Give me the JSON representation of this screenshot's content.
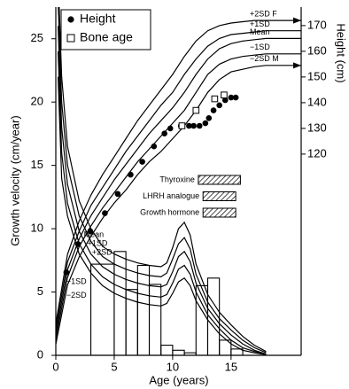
{
  "chart_data": {
    "type": "growth",
    "x_label": "Age (years)",
    "y_label": "Growth velocity (cm/year)",
    "y2_label": "Height (cm)",
    "xlim": [
      0,
      21
    ],
    "xticks": [
      0,
      5,
      10,
      15
    ],
    "ylim": [
      0,
      27.5
    ],
    "yticks": [
      0,
      5,
      10,
      15,
      20,
      25
    ],
    "y2lim": [
      41.7,
      177.2
    ],
    "y2ticks": [
      120,
      130,
      140,
      150,
      160,
      170
    ],
    "height_x": [
      0,
      1,
      2,
      3,
      4,
      5,
      6,
      7,
      8,
      9,
      10,
      11,
      12,
      13,
      14,
      15,
      16,
      17,
      18,
      21
    ],
    "height_curves": [
      {
        "name": "+2SD F",
        "values": [
          54,
          81,
          94,
          104,
          112,
          119,
          126,
          133,
          139,
          145,
          151,
          158,
          164,
          168,
          170,
          171,
          171.5,
          172,
          172,
          172
        ]
      },
      {
        "name": "+1SD",
        "values": [
          52,
          78,
          90,
          100,
          107,
          114,
          121,
          127,
          133,
          139,
          144,
          151,
          157,
          162,
          165,
          166.5,
          167,
          167.5,
          168,
          168
        ]
      },
      {
        "name": "Mean",
        "values": [
          50,
          75,
          87,
          96,
          103,
          110,
          116,
          122,
          128,
          133,
          138,
          144,
          151,
          157,
          161,
          163,
          164,
          164.5,
          165,
          165
        ]
      },
      {
        "name": "−1SD",
        "values": [
          48,
          72,
          84,
          92,
          99,
          105,
          111,
          117,
          122,
          127,
          132,
          137,
          144,
          151,
          155,
          157,
          158,
          158.5,
          159,
          159
        ]
      },
      {
        "name": "−2SD M",
        "values": [
          46,
          69,
          80,
          88,
          95,
          101,
          106,
          112,
          117,
          121,
          126,
          131,
          137,
          144,
          149,
          152,
          153,
          154,
          154.5,
          154.5
        ]
      }
    ],
    "velocity_x": [
      0.2,
      0.5,
      1,
      2,
      3,
      4,
      5,
      6,
      7,
      8,
      9,
      9.5,
      10,
      10.5,
      11,
      11.5,
      12,
      13,
      14,
      15,
      16,
      17,
      18
    ],
    "velocity_curves": [
      {
        "name": "+2SD",
        "values": [
          30,
          22,
          16.5,
          12.2,
          10,
          8.6,
          8,
          7.6,
          7.3,
          7.1,
          7.0,
          7.3,
          8.5,
          10,
          10.5,
          9.5,
          7.2,
          4.8,
          3.4,
          2.4,
          1.5,
          0.8,
          0.3
        ]
      },
      {
        "name": "+1SD",
        "values": [
          28,
          20,
          15,
          11,
          9,
          7.8,
          7.2,
          6.8,
          6.5,
          6.3,
          6.2,
          6.5,
          7.6,
          8.8,
          9.3,
          8.4,
          6.4,
          4.2,
          2.9,
          2,
          1.2,
          0.6,
          0.2
        ]
      },
      {
        "name": "Mean",
        "values": [
          26,
          18,
          13.5,
          9.8,
          8,
          7,
          6.4,
          6,
          5.7,
          5.5,
          5.4,
          5.6,
          6.6,
          7.8,
          8.2,
          7.4,
          5.7,
          3.7,
          2.5,
          1.6,
          0.9,
          0.4,
          0.1
        ]
      },
      {
        "name": "−1SD",
        "values": [
          24,
          16,
          12,
          8.8,
          7.2,
          6.2,
          5.6,
          5.2,
          4.9,
          4.7,
          4.6,
          4.8,
          5.7,
          6.8,
          7.1,
          6.4,
          5,
          3.2,
          2.1,
          1.2,
          0.6,
          0.3,
          0.1
        ]
      },
      {
        "name": "−2SD",
        "values": [
          22,
          14,
          11,
          8,
          6.5,
          5.5,
          4.9,
          4.5,
          4.2,
          4.0,
          3.9,
          4.1,
          4.9,
          5.8,
          6.1,
          5.5,
          4.3,
          2.8,
          1.7,
          0.9,
          0.4,
          0.2,
          0.05
        ]
      }
    ],
    "points": [
      {
        "name": "Height",
        "x": [
          0.9,
          1.9,
          2.95,
          4.2,
          5.3,
          6.4,
          7.4,
          8.4,
          9.3,
          9.8,
          10.7,
          11.4,
          11.8,
          12.3,
          12.8,
          13.1,
          13.5,
          14,
          14.5,
          15,
          15.4
        ],
        "values": [
          74,
          85,
          90,
          97,
          104.5,
          112,
          117,
          123,
          128,
          130,
          131,
          131,
          131,
          131,
          132,
          134,
          137,
          139,
          141,
          142,
          142
        ]
      },
      {
        "name": "Bone age",
        "x": [
          10.8,
          12,
          13.6,
          14.4
        ],
        "values": [
          131,
          137,
          141.5,
          143
        ]
      }
    ],
    "bins": [
      3,
      5,
      6,
      7,
      8,
      9,
      10,
      11,
      12,
      13,
      14,
      15,
      16
    ],
    "counts": [
      7.2,
      8.2,
      5.2,
      7.1,
      5.6,
      0.8,
      0.4,
      0.2,
      5.5,
      6.1,
      1.2,
      0.5
    ],
    "treatments": [
      {
        "label": "Thyroxine",
        "start": 12.2,
        "end": 15.8
      },
      {
        "label": "LHRH analogue",
        "start": 12.6,
        "end": 15.4
      },
      {
        "label": "Growth hormone",
        "start": 12.6,
        "end": 15.4
      }
    ]
  }
}
